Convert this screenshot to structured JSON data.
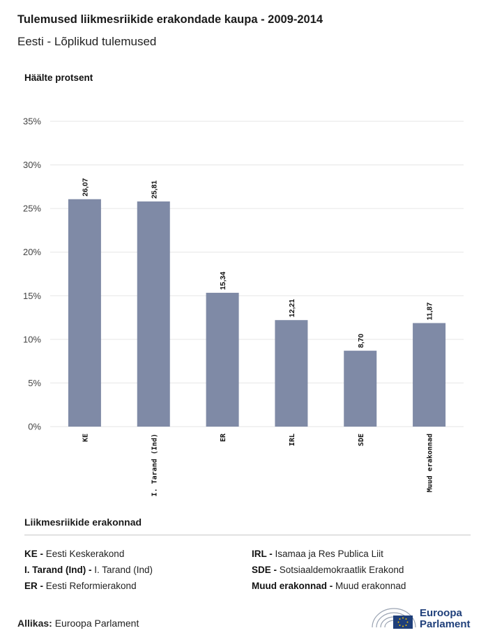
{
  "header": {
    "title": "Tulemused liikmesriikide erakondade kaupa - 2009-2014",
    "subtitle": "Eesti - Lõplikud tulemused"
  },
  "chart_data": {
    "type": "bar",
    "ylabel": "Häälte protsent",
    "categories": [
      "KE",
      "I. Tarand (Ind)",
      "ER",
      "IRL",
      "SDE",
      "Muud erakonnad"
    ],
    "values": [
      26.07,
      25.81,
      15.34,
      12.21,
      8.7,
      11.87
    ],
    "value_labels": [
      "26,07",
      "25,81",
      "15,34",
      "12,21",
      "8,70",
      "11,87"
    ],
    "ylim": [
      0,
      35
    ],
    "yticks": [
      0,
      5,
      10,
      15,
      20,
      25,
      30,
      35
    ],
    "ytick_labels": [
      "0%",
      "5%",
      "10%",
      "15%",
      "20%",
      "25%",
      "30%",
      "35%"
    ],
    "bar_color": "#7f8aa6",
    "grid": true
  },
  "legend": {
    "title": "Liikmesriikide erakonnad",
    "left": [
      {
        "abbr": "KE - ",
        "name": "Eesti Keskerakond"
      },
      {
        "abbr": "I. Tarand (Ind) - ",
        "name": "I. Tarand (Ind)"
      },
      {
        "abbr": "ER - ",
        "name": "Eesti Reformierakond"
      }
    ],
    "right": [
      {
        "abbr": "IRL - ",
        "name": "Isamaa ja Res Publica Liit"
      },
      {
        "abbr": "SDE - ",
        "name": "Sotsiaaldemokraatlik Erakond"
      },
      {
        "abbr": "Muud erakonnad - ",
        "name": "Muud erakonnad"
      }
    ]
  },
  "footer": {
    "source_label": "Allikas:",
    "source_value": " Euroopa Parlament",
    "logo_line1": "Euroopa",
    "logo_line2": "Parlament"
  }
}
